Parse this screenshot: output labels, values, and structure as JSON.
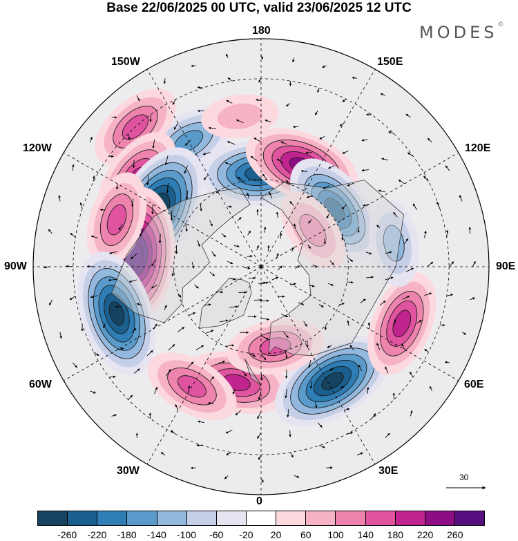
{
  "title": "Base 22/06/2025 00 UTC, valid 23/06/2025 12 UTC",
  "brand": "MODES",
  "brand_mark": "©",
  "longitude_labels": {
    "n180": "180",
    "w150": "150W",
    "e150": "150E",
    "w120": "120W",
    "e120": "120E",
    "w90": "90W",
    "e90": "90E",
    "w60": "60W",
    "e60": "60E",
    "w30": "30W",
    "e30": "30E",
    "s0": "0"
  },
  "vector_scale_label": "30",
  "colorbar": {
    "colors": [
      "#16435f",
      "#1a5f8e",
      "#2f7db5",
      "#5b9bcc",
      "#93b8dd",
      "#c5cfe8",
      "#e6e4f1",
      "#ffffff",
      "#fbd9df",
      "#f6b3c5",
      "#ee84ae",
      "#df539f",
      "#c2248f",
      "#8e0c84",
      "#571080"
    ],
    "tick_labels": [
      "-260",
      "-220",
      "-180",
      "-140",
      "-100",
      "-60",
      "-20",
      "20",
      "60",
      "100",
      "140",
      "180",
      "220",
      "260"
    ]
  },
  "anomaly_centers": [
    {
      "lon": -150,
      "lat": 42,
      "sign": "neg",
      "level": 3
    },
    {
      "lon": -172,
      "lat": 40,
      "sign": "pos",
      "level": 1
    },
    {
      "lon": -138,
      "lat": 30,
      "sign": "pos",
      "level": 3
    },
    {
      "lon": -178,
      "lat": 58,
      "sign": "neg",
      "level": 5
    },
    {
      "lon": 158,
      "lat": 53,
      "sign": "pos",
      "level": 5
    },
    {
      "lon": 128,
      "lat": 58,
      "sign": "neg",
      "level": 5
    },
    {
      "lon": -125,
      "lat": 40,
      "sign": "pos",
      "level": 4
    },
    {
      "lon": -118,
      "lat": 50,
      "sign": "neg",
      "level": 7
    },
    {
      "lon": -95,
      "lat": 48,
      "sign": "pos",
      "level": 7
    },
    {
      "lon": -108,
      "lat": 40,
      "sign": "pos",
      "level": 3
    },
    {
      "lon": -72,
      "lat": 40,
      "sign": "neg",
      "level": 6
    },
    {
      "lon": -12,
      "lat": 50,
      "sign": "pos",
      "level": 4
    },
    {
      "lon": -30,
      "lat": 44,
      "sign": "pos",
      "level": 3
    },
    {
      "lon": 32,
      "lat": 45,
      "sign": "neg",
      "level": 6
    },
    {
      "lon": 68,
      "lat": 40,
      "sign": "pos",
      "level": 4
    },
    {
      "lon": 100,
      "lat": 45,
      "sign": "neg",
      "level": 2
    },
    {
      "lon": 125,
      "lat": 68,
      "sign": "pos",
      "level": 2
    },
    {
      "lon": 10,
      "lat": 62,
      "sign": "pos",
      "level": 3
    }
  ]
}
